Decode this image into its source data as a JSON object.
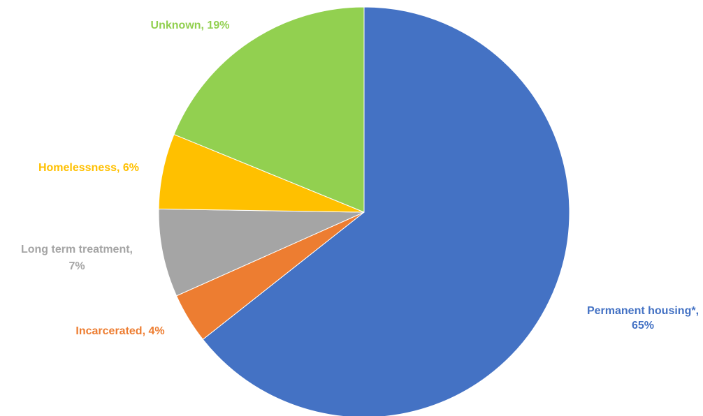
{
  "chart_data": {
    "type": "pie",
    "title": "",
    "slices": [
      {
        "label": "Permanent housing*,",
        "label_line2": "65%",
        "value": 65,
        "color": "#4472C4"
      },
      {
        "label": "Incarcerated, 4%",
        "label_line2": "",
        "value": 4,
        "color": "#ED7D31"
      },
      {
        "label": "Long term treatment,",
        "label_line2": "7%",
        "value": 7,
        "color": "#A5A5A5"
      },
      {
        "label": "Homelessness, 6%",
        "label_line2": "",
        "value": 6,
        "color": "#FFC000"
      },
      {
        "label": "Unknown, 19%",
        "label_line2": "",
        "value": 19,
        "color": "#92D050"
      }
    ]
  }
}
